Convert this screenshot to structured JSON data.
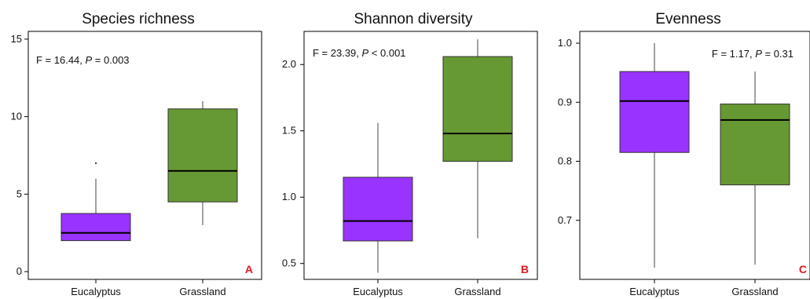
{
  "colors": {
    "eucalyptus": "#9933ff",
    "grassland": "#669933",
    "median": "#000000",
    "whisker": "#444444",
    "letter": "#e0191f"
  },
  "chart_data": [
    {
      "type": "boxplot",
      "title": "Species richness",
      "categories": [
        "Eucalyptus",
        "Grassland"
      ],
      "ylim": [
        -0.5,
        15.5
      ],
      "yticks": [
        0,
        5,
        10,
        15
      ],
      "stat": {
        "prefix": "F = 16.44, ",
        "p": "P",
        "suffix": " =  0.003"
      },
      "panel_letter": "A",
      "boxes": [
        {
          "category": "Eucalyptus",
          "min": 2,
          "q1": 2,
          "median": 2.5,
          "q3": 3.75,
          "max": 6,
          "outliers": [
            7
          ]
        },
        {
          "category": "Grassland",
          "min": 3,
          "q1": 4.5,
          "median": 6.5,
          "q3": 10.5,
          "max": 11,
          "outliers": []
        }
      ]
    },
    {
      "type": "boxplot",
      "title": "Shannon diversity",
      "categories": [
        "Eucalyptus",
        "Grassland"
      ],
      "ylim": [
        0.38,
        2.25
      ],
      "yticks": [
        0.5,
        1.0,
        1.5,
        2.0
      ],
      "stat": {
        "prefix": "F = 23.39, ",
        "p": "P",
        "suffix": " <  0.001"
      },
      "panel_letter": "B",
      "boxes": [
        {
          "category": "Eucalyptus",
          "min": 0.43,
          "q1": 0.67,
          "median": 0.82,
          "q3": 1.15,
          "max": 1.56,
          "outliers": []
        },
        {
          "category": "Grassland",
          "min": 0.69,
          "q1": 1.27,
          "median": 1.48,
          "q3": 2.06,
          "max": 2.19,
          "outliers": []
        }
      ]
    },
    {
      "type": "boxplot",
      "title": "Evenness",
      "categories": [
        "Eucalyptus",
        "Grassland"
      ],
      "ylim": [
        0.6,
        1.02
      ],
      "yticks": [
        0.7,
        0.8,
        0.9,
        1.0
      ],
      "stat": {
        "prefix": "F = 1.17, ",
        "p": "P",
        "suffix": " =  0.31"
      },
      "panel_letter": "C",
      "boxes": [
        {
          "category": "Eucalyptus",
          "min": 0.62,
          "q1": 0.815,
          "median": 0.902,
          "q3": 0.952,
          "max": 1.0,
          "outliers": []
        },
        {
          "category": "Grassland",
          "min": 0.625,
          "q1": 0.76,
          "median": 0.87,
          "q3": 0.897,
          "max": 0.952,
          "outliers": []
        }
      ]
    }
  ]
}
